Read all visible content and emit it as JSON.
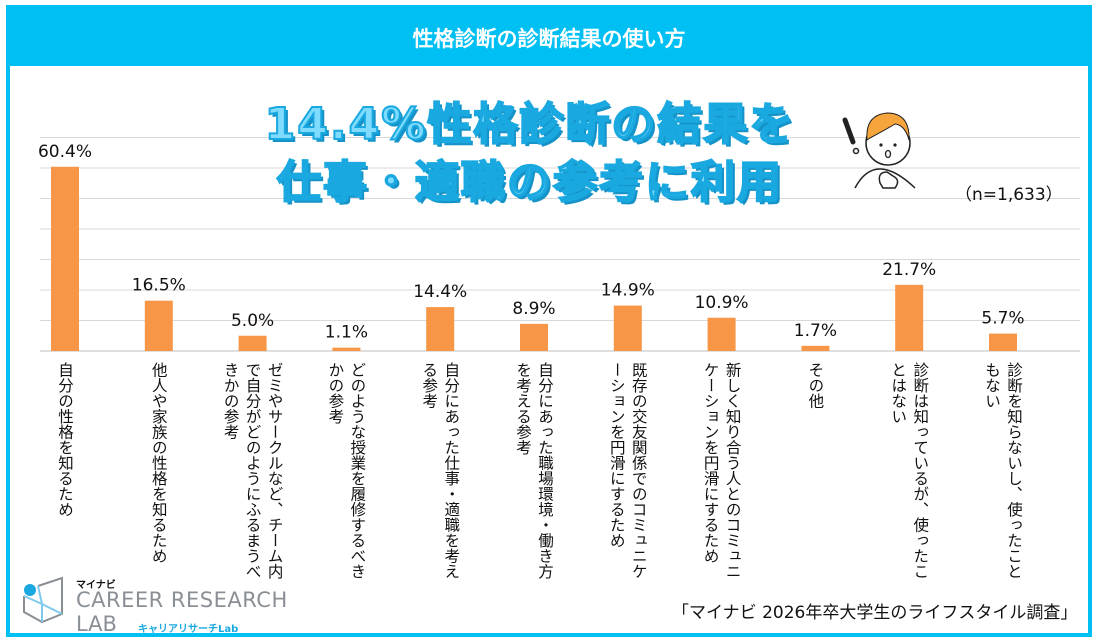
{
  "title": "性格診断の診断結果の使い方",
  "headline": {
    "line1": "14.4%性格診断の結果を",
    "line2": "仕事・適職の参考に利用"
  },
  "sample_size": "（n=1,633）",
  "source": "「マイナビ 2026年卒大学生のライフスタイル調査」",
  "logo": {
    "brand": "マイナビ",
    "line1": "CAREER RESEARCH",
    "line2": "LAB",
    "sub": "キャリアリサーチLab"
  },
  "colors": {
    "frame": "#00bff3",
    "bar": "#f79646",
    "grid": "#d9d9d9"
  },
  "icons": {
    "illustration": "surprised-person-icon"
  },
  "chart_data": {
    "type": "bar",
    "title": "",
    "xlabel": "",
    "ylabel": "",
    "ylim": [
      0,
      70
    ],
    "grid": true,
    "unit": "%",
    "categories": [
      "自分の性格を知るため",
      "他人や家族の性格を知るため",
      "ゼミやサークルなど、チーム内で自分がどのようにふるまうべきかの参考",
      "どのような授業を履修するべきかの参考",
      "自分にあった仕事・適職を考える参考",
      "自分にあった職場環境・働き方を考える参考",
      "既存の交友関係でのコミュニケーションを円滑にするため",
      "新しく知り合う人とのコミュニケーションを円滑にするため",
      "その他",
      "診断は知っているが、使ったことはない",
      "診断を知らないし、使ったこともない"
    ],
    "values": [
      60.4,
      16.5,
      5.0,
      1.1,
      14.4,
      8.9,
      14.9,
      10.9,
      1.7,
      21.7,
      5.7
    ],
    "data_labels": [
      "60.4%",
      "16.5%",
      "5.0%",
      "1.1%",
      "14.4%",
      "8.9%",
      "14.9%",
      "10.9%",
      "1.7%",
      "21.7%",
      "5.7%"
    ]
  }
}
